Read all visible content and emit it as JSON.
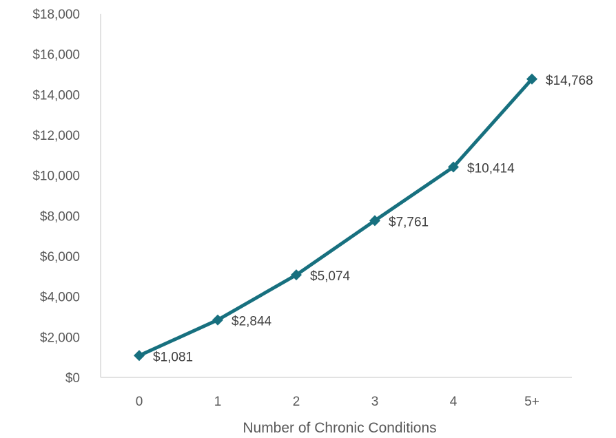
{
  "chart_data": {
    "type": "line",
    "title": "",
    "xlabel": "Number of Chronic Conditions",
    "ylabel": "",
    "categories": [
      "0",
      "1",
      "2",
      "3",
      "4",
      "5+"
    ],
    "series": [
      {
        "values": [
          1081,
          2844,
          5074,
          7761,
          10414,
          14768
        ],
        "data_labels": [
          "$1,081",
          "$2,844",
          "$5,074",
          "$7,761",
          "$10,414",
          "$14,768"
        ],
        "color": "#17707f",
        "marker": "diamond"
      }
    ],
    "ylim": [
      0,
      18000
    ],
    "y_ticks": [
      0,
      2000,
      4000,
      6000,
      8000,
      10000,
      12000,
      14000,
      16000,
      18000
    ],
    "y_tick_labels": [
      "$0",
      "$2,000",
      "$4,000",
      "$6,000",
      "$8,000",
      "$10,000",
      "$12,000",
      "$14,000",
      "$16,000",
      "$18,000"
    ],
    "grid": false,
    "legend": "none",
    "axis_color": "#d9d9d9"
  }
}
